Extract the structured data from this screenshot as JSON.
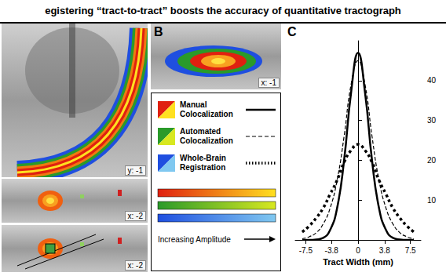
{
  "title": "egistering “tract-to-tract” boosts the accuracy of quantitative tractograph",
  "panels": {
    "A": {
      "slice_labels": [
        "y: -1",
        "x: -2",
        "x: -2"
      ]
    },
    "B": {
      "panel_label": "B",
      "slice_label": "x: -1"
    }
  },
  "legend": {
    "amplitude_label": "Increasing Amplitude"
  },
  "chart_data": {
    "type": "line",
    "panel_label": "C",
    "x_label": "Tract Width (mm)",
    "x": [
      -8,
      -7,
      -6,
      -5,
      -4,
      -3,
      -2,
      -1,
      0,
      1,
      2,
      3,
      4,
      5,
      6,
      7,
      8
    ],
    "series": [
      {
        "name": "Manual Colocalization",
        "color": "#000000",
        "line_style": "solid",
        "values": [
          0,
          0,
          0.1,
          0.5,
          2.5,
          8,
          20,
          37,
          47,
          37,
          20,
          8,
          2.5,
          0.5,
          0.1,
          0,
          0
        ]
      },
      {
        "name": "Automated Colocalization",
        "color": "#000000",
        "line_style": "dashed",
        "values": [
          0.3,
          0.8,
          1.8,
          4,
          8,
          15,
          26,
          39,
          45,
          39,
          26,
          15,
          8,
          4,
          1.8,
          0.8,
          0.3
        ]
      },
      {
        "name": "Whole-Brain Registration",
        "color": "#000000",
        "line_style": "dotted",
        "values": [
          2,
          3.5,
          5.5,
          8,
          11.5,
          15,
          19.5,
          22.5,
          24,
          22.5,
          19.5,
          15,
          11.5,
          8,
          5.5,
          3.5,
          2
        ]
      }
    ],
    "xlim": [
      -9,
      9
    ],
    "xticks": [
      -7.5,
      -3.8,
      0,
      3.8,
      7.5
    ],
    "ylim": [
      0,
      50
    ],
    "yticks": [
      10,
      20,
      30,
      40
    ],
    "grid": false,
    "smooth": true
  }
}
